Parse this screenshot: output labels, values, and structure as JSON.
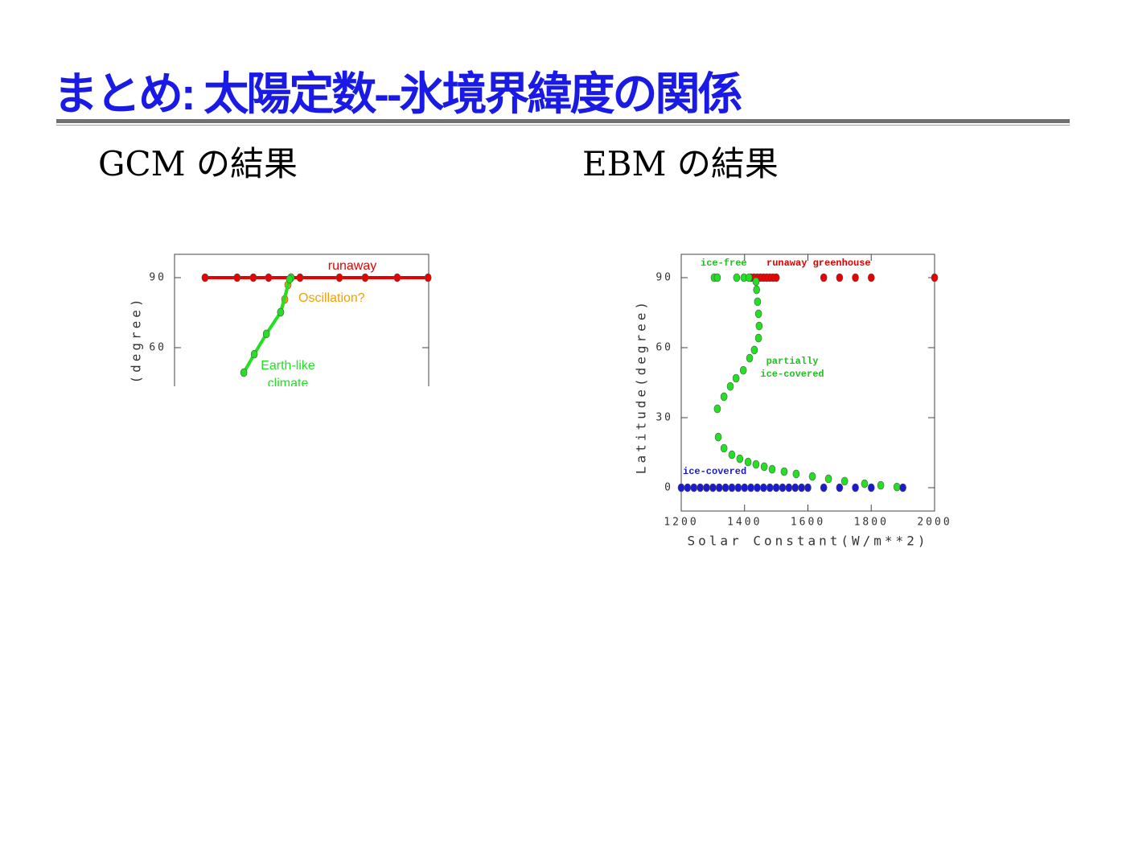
{
  "title": "まとめ: 太陽定数--氷境界緯度の関係",
  "panels": [
    {
      "heading": "GCM の結果"
    },
    {
      "heading": "EBM の結果"
    }
  ],
  "chart_data": [
    {
      "type": "scatter",
      "lines": true,
      "ylabel": "(degree)",
      "xlim": [
        1200,
        2000
      ],
      "ylim": [
        43,
        100
      ],
      "yticks": [
        60,
        90
      ],
      "series": [
        {
          "color": "#e80000",
          "x": [
            1296,
            1397,
            1448,
            1496,
            1595,
            1719,
            1800,
            1901,
            1998
          ],
          "values": [
            90,
            90,
            90,
            90,
            90,
            90,
            90,
            90,
            90
          ]
        },
        {
          "color": "#f0a000",
          "x": [
            1567,
            1557,
            1547,
            1534
          ],
          "values": [
            90,
            86.9,
            80.7,
            75.2
          ]
        },
        {
          "color": "#22e022",
          "x": [
            1567,
            1562,
            1534,
            1489,
            1451,
            1418
          ],
          "values": [
            90,
            89.3,
            75.2,
            65.9,
            57.2,
            49.3
          ]
        }
      ],
      "annotations": [
        {
          "lines": [
            "runaway"
          ],
          "color": "#e80000"
        },
        {
          "lines": [
            "Oscillation?"
          ],
          "color": "#f0a000"
        },
        {
          "lines": [
            "Earth-like",
            "climate"
          ],
          "color": "#22e022"
        }
      ]
    },
    {
      "type": "scatter",
      "lines": false,
      "xlabel": "Solar Constant(W/m**2)",
      "ylabel": "Latitude(degree)",
      "xlim": [
        1200,
        2000
      ],
      "ylim": [
        -10,
        100
      ],
      "xticks": [
        1200,
        1400,
        1600,
        1800,
        2000
      ],
      "yticks": [
        0,
        30,
        60,
        90
      ],
      "series": [
        {
          "color": "#e80000",
          "x": [
            1420,
            1430,
            1440,
            1450,
            1460,
            1470,
            1480,
            1490,
            1500,
            1650,
            1700,
            1750,
            1800,
            2000
          ],
          "values": [
            90,
            90,
            90,
            90,
            90,
            90,
            90,
            90,
            90,
            90,
            90,
            90,
            90,
            90
          ]
        },
        {
          "color": "#22e022",
          "x": [
            1304,
            1314,
            1375,
            1398,
            1414,
            1436,
            1438,
            1441,
            1444,
            1446,
            1444,
            1431,
            1416,
            1396,
            1373,
            1355,
            1335,
            1314,
            1317,
            1335,
            1360,
            1385,
            1411,
            1436,
            1462,
            1487,
            1525,
            1563,
            1614,
            1665,
            1716,
            1779,
            1830,
            1881
          ],
          "values": [
            90,
            90,
            90,
            90,
            90,
            88.3,
            84.8,
            79.7,
            74.5,
            69.3,
            64.1,
            59,
            55.5,
            50.3,
            46.9,
            43.4,
            39,
            33.8,
            21.7,
            16.9,
            14.1,
            12.4,
            11,
            10,
            9,
            7.9,
            6.9,
            5.9,
            4.8,
            3.8,
            2.8,
            1.7,
            1,
            0.3
          ]
        },
        {
          "color": "#1a1ad0",
          "x": [
            1200,
            1220,
            1240,
            1260,
            1280,
            1300,
            1320,
            1340,
            1360,
            1380,
            1400,
            1420,
            1440,
            1460,
            1480,
            1500,
            1520,
            1540,
            1560,
            1580,
            1600,
            1650,
            1700,
            1750,
            1800,
            1900
          ],
          "values": [
            0,
            0,
            0,
            0,
            0,
            0,
            0,
            0,
            0,
            0,
            0,
            0,
            0,
            0,
            0,
            0,
            0,
            0,
            0,
            0,
            0,
            0,
            0,
            0,
            0,
            0
          ]
        }
      ],
      "annotations": [
        {
          "lines": [
            "ice-free"
          ],
          "color": "#22c022"
        },
        {
          "lines": [
            "runaway greenhouse"
          ],
          "color": "#e00000"
        },
        {
          "lines": [
            "partially",
            "ice-covered"
          ],
          "color": "#22c022"
        },
        {
          "lines": [
            "ice-covered"
          ],
          "color": "#1a1ad0"
        }
      ]
    }
  ]
}
